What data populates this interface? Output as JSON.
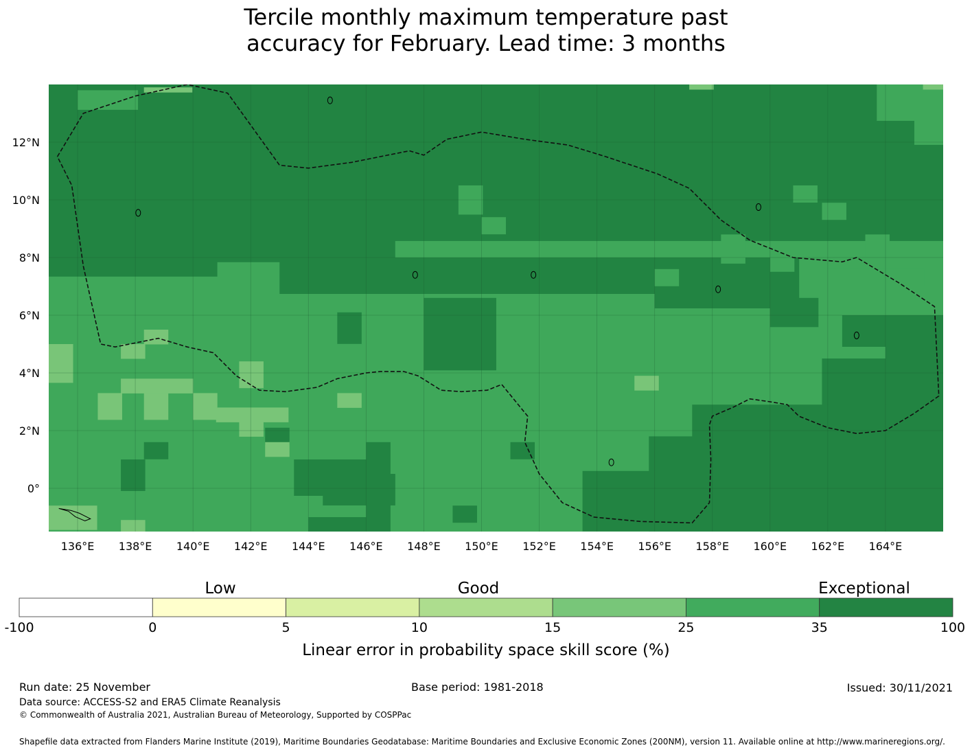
{
  "title_line1": "Tercile monthly maximum temperature past",
  "title_line2": "accuracy for February. Lead time: 3 months",
  "map": {
    "lon_labels": [
      "136°E",
      "138°E",
      "140°E",
      "142°E",
      "144°E",
      "146°E",
      "148°E",
      "150°E",
      "152°E",
      "154°E",
      "156°E",
      "158°E",
      "160°E",
      "162°E",
      "164°E"
    ],
    "lon_values": [
      136,
      138,
      140,
      142,
      144,
      146,
      148,
      150,
      152,
      154,
      156,
      158,
      160,
      162,
      164
    ],
    "lat_labels": [
      "12°N",
      "10°N",
      "8°N",
      "6°N",
      "4°N",
      "2°N",
      "0°"
    ],
    "lat_values": [
      12,
      10,
      8,
      6,
      4,
      2,
      0
    ],
    "lon_range": [
      135.0,
      166.0
    ],
    "lat_range": [
      -1.5,
      14.0
    ],
    "colors": {
      "exceptional": "#228442",
      "good_high": "#3fa85a",
      "good_mid": "#79c578",
      "good_low": "#addf8e"
    }
  },
  "colorbar": {
    "categories": [
      "Low",
      "Good",
      "Exceptional"
    ],
    "ticks": [
      "-100",
      "0",
      "5",
      "10",
      "15",
      "25",
      "35",
      "100"
    ],
    "colors": [
      "#ffffff",
      "#ffffcc",
      "#d9f0a3",
      "#addd8e",
      "#78c679",
      "#41ab5d",
      "#238443"
    ],
    "label": "Linear error in probability space skill score (%)"
  },
  "footer": {
    "run_date": "Run date: 25 November",
    "base_period": "Base period: 1981-2018",
    "issued": "Issued: 30/11/2021",
    "data_source": "Data source: ACCESS-S2 and ERA5 Climate Reanalysis",
    "copyright": "© Commonwealth of Australia 2021, Australian Bureau of Meteorology, Supported by COSPPac",
    "shapefile": "Shapefile data extracted from Flanders Marine Institute (2019), Maritime Boundaries Geodatabase: Maritime Boundaries and Exclusive Economic Zones (200NM), version 11. Available online at http://www.marineregions.org/."
  }
}
